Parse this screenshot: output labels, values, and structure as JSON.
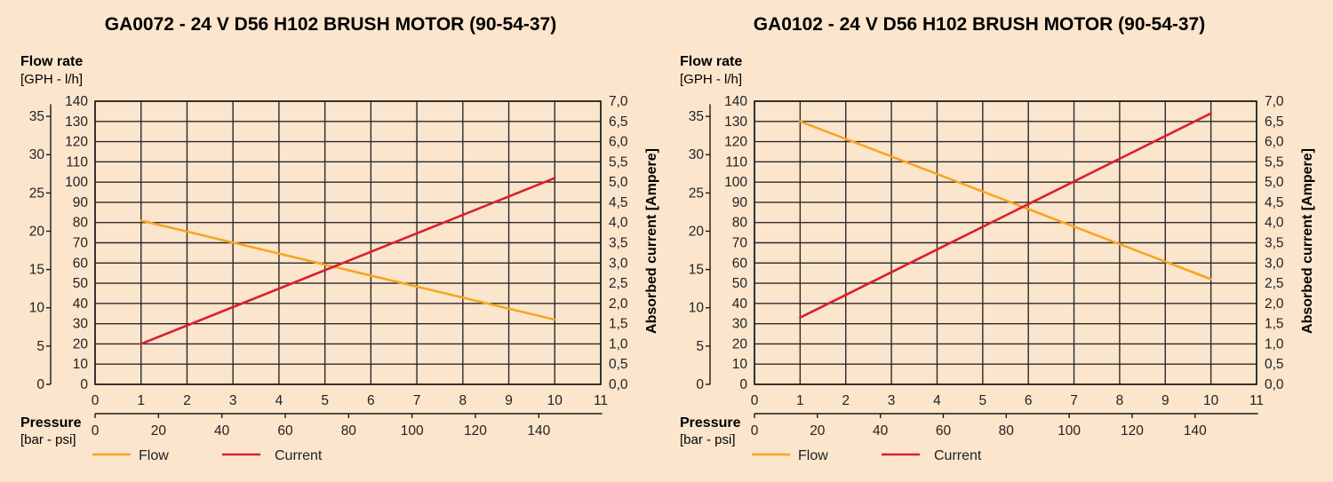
{
  "colors": {
    "background": "#fbe5cc",
    "flow": "#f5a623",
    "current": "#d9202e",
    "grid": "#2a2a2a"
  },
  "labels": {
    "flow_rate": "Flow rate",
    "flow_units": "[GPH - l/h]",
    "pressure": "Pressure",
    "pressure_units": "[bar - psi]",
    "absorbed_current": "Absorbed current [Ampere]",
    "legend_flow": "Flow",
    "legend_current": "Current"
  },
  "chart_data": [
    {
      "type": "line",
      "title": "GA0072 - 24 V D56 H102 BRUSH MOTOR (90-54-37)",
      "xlabel": "Pressure [bar - psi]",
      "ylabel": "Flow rate [GPH - l/h]",
      "y2label": "Absorbed current [Ampere]",
      "grid": true,
      "legend": "bottom-left",
      "x_bar": {
        "lim": [
          0,
          11
        ],
        "ticks": [
          0,
          1,
          2,
          3,
          4,
          5,
          6,
          7,
          8,
          9,
          10,
          11
        ]
      },
      "x_psi": {
        "ticks": [
          0,
          20,
          40,
          60,
          80,
          100,
          120,
          140
        ]
      },
      "y_lh": {
        "lim": [
          0,
          140
        ],
        "ticks": [
          0,
          10,
          20,
          30,
          40,
          50,
          60,
          70,
          80,
          90,
          100,
          110,
          120,
          130,
          140
        ]
      },
      "y_gph": {
        "ticks": [
          0,
          5,
          10,
          15,
          20,
          25,
          30,
          35
        ]
      },
      "y_amp": {
        "lim": [
          0,
          7
        ],
        "ticks": [
          "0,0",
          "0,5",
          "1,0",
          "1,5",
          "2,0",
          "2,5",
          "3,0",
          "3,5",
          "4,0",
          "4,5",
          "5,0",
          "5,5",
          "6,0",
          "6,5",
          "7,0"
        ]
      },
      "series": [
        {
          "name": "Flow",
          "axis": "l/h",
          "x": [
            1,
            10
          ],
          "y": [
            81,
            32
          ]
        },
        {
          "name": "Current",
          "axis": "Ampere",
          "x": [
            1,
            10
          ],
          "y": [
            1.0,
            5.1
          ]
        }
      ]
    },
    {
      "type": "line",
      "title": "GA0102 - 24 V D56 H102 BRUSH MOTOR (90-54-37)",
      "xlabel": "Pressure [bar - psi]",
      "ylabel": "Flow rate [GPH - l/h]",
      "y2label": "Absorbed current [Ampere]",
      "grid": true,
      "legend": "bottom-left",
      "x_bar": {
        "lim": [
          0,
          11
        ],
        "ticks": [
          0,
          1,
          2,
          3,
          4,
          5,
          6,
          7,
          8,
          9,
          10,
          11
        ]
      },
      "x_psi": {
        "ticks": [
          0,
          20,
          40,
          60,
          80,
          100,
          120,
          140
        ]
      },
      "y_lh": {
        "lim": [
          0,
          140
        ],
        "ticks": [
          0,
          10,
          20,
          30,
          40,
          50,
          60,
          70,
          80,
          90,
          100,
          110,
          120,
          130,
          140
        ]
      },
      "y_gph": {
        "ticks": [
          0,
          5,
          10,
          15,
          20,
          25,
          30,
          35
        ]
      },
      "y_amp": {
        "lim": [
          0,
          7
        ],
        "ticks": [
          "0,0",
          "0,5",
          "1,0",
          "1,5",
          "2,0",
          "2,5",
          "3,0",
          "3,5",
          "4,0",
          "4,5",
          "5,0",
          "5,5",
          "6,0",
          "6,5",
          "7,0"
        ]
      },
      "series": [
        {
          "name": "Flow",
          "axis": "l/h",
          "x": [
            1,
            10
          ],
          "y": [
            130,
            52
          ]
        },
        {
          "name": "Current",
          "axis": "Ampere",
          "x": [
            1,
            10
          ],
          "y": [
            1.65,
            6.7
          ]
        }
      ]
    }
  ]
}
